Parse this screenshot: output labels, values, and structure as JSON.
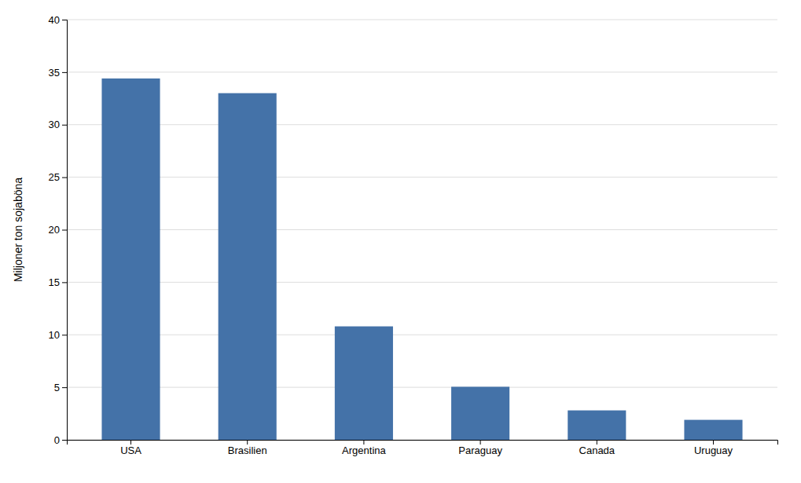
{
  "chart_data": {
    "type": "bar",
    "categories": [
      "USA",
      "Brasilien",
      "Argentina",
      "Paraguay",
      "Canada",
      "Uruguay"
    ],
    "values": [
      34.4,
      33.0,
      10.8,
      5.05,
      2.8,
      1.9
    ],
    "color": "#4472a8",
    "ylabel": "Miljoner ton sojaböna",
    "ylim": [
      0,
      40
    ],
    "yticks": [
      0,
      5,
      10,
      15,
      20,
      25,
      30,
      35,
      40
    ],
    "grid": true
  }
}
